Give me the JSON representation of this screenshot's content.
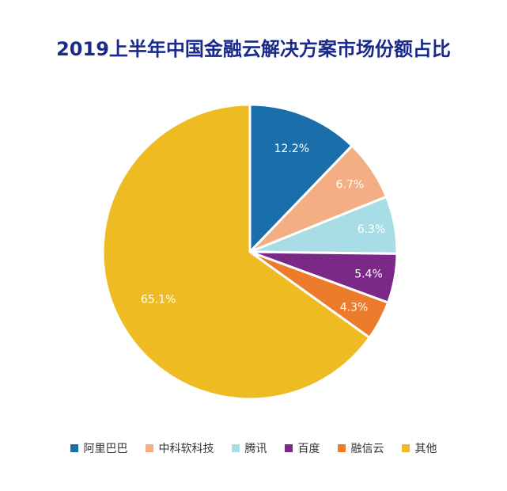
{
  "chart_data": {
    "type": "pie",
    "title": "2019上半年中国金融云解决方案市场份额占比",
    "slices": [
      {
        "label": "阿里巴巴",
        "value": 12.2,
        "value_label": "12.2%",
        "color": "#1a6faa"
      },
      {
        "label": "中科软科技",
        "value": 6.7,
        "value_label": "6.7%",
        "color": "#f3ae84"
      },
      {
        "label": "腾讯",
        "value": 6.3,
        "value_label": "6.3%",
        "color": "#a9dde5"
      },
      {
        "label": "百度",
        "value": 5.4,
        "value_label": "5.4%",
        "color": "#7a2a86"
      },
      {
        "label": "融信云",
        "value": 4.3,
        "value_label": "4.3%",
        "color": "#ec7b2b"
      },
      {
        "label": "其他",
        "value": 65.1,
        "value_label": "65.1%",
        "color": "#eebb22"
      }
    ],
    "legend_position": "bottom"
  }
}
